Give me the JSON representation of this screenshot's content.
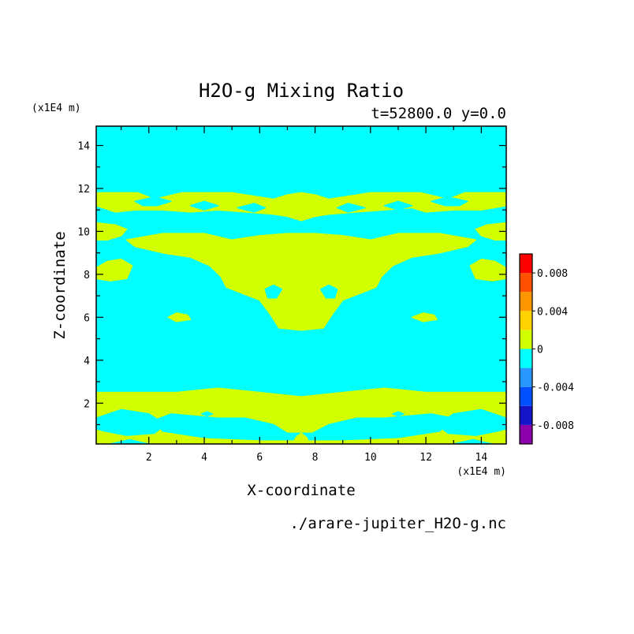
{
  "chart_data": {
    "type": "heatmap",
    "title": "H2O-g Mixing Ratio",
    "subtitle": "t=52800.0 y=0.0",
    "xlabel": "X-coordinate",
    "ylabel": "Z-coordinate",
    "x_unit": "(x1E4 m)",
    "y_unit": "(x1E4 m)",
    "file_label": "./arare-jupiter_H2O-g.nc",
    "xlim": [
      0.1,
      14.9
    ],
    "ylim": [
      0.1,
      14.9
    ],
    "x_ticks": [
      "2",
      "4",
      "6",
      "8",
      "10",
      "12",
      "14"
    ],
    "y_ticks": [
      "2",
      "4",
      "6",
      "8",
      "10",
      "12",
      "14"
    ],
    "x_tick_values": [
      2,
      4,
      6,
      8,
      10,
      12,
      14
    ],
    "y_tick_values": [
      2,
      4,
      6,
      8,
      10,
      12,
      14
    ],
    "colorbar": {
      "levels": [
        -0.01,
        -0.008,
        -0.006,
        -0.004,
        -0.002,
        0,
        0.002,
        0.004,
        0.006,
        0.008,
        0.01
      ],
      "colors": [
        "#8B00A8",
        "#1414C8",
        "#0050FF",
        "#2896FF",
        "#00FFFF",
        "#D2FF00",
        "#FFD200",
        "#FF9600",
        "#FF5000",
        "#FF0000",
        "#FFAAAA"
      ],
      "tick_labels": [
        "0.008",
        "0.004",
        "0",
        "-0.004",
        "-0.008"
      ],
      "tick_values": [
        0.008,
        0.004,
        0,
        -0.004,
        -0.008
      ]
    },
    "background_level": "-0.002 to 0",
    "regions_level": "0 to 0.002",
    "regions": [
      {
        "name": "upper-band",
        "points": [
          [
            0.1,
            11.8
          ],
          [
            1.6,
            11.8
          ],
          [
            2.2,
            11.5
          ],
          [
            3.2,
            11.8
          ],
          [
            5.0,
            11.8
          ],
          [
            6.5,
            11.5
          ],
          [
            7.0,
            11.7
          ],
          [
            7.5,
            11.8
          ],
          [
            8.0,
            11.7
          ],
          [
            8.5,
            11.5
          ],
          [
            10.0,
            11.8
          ],
          [
            11.8,
            11.8
          ],
          [
            12.8,
            11.5
          ],
          [
            13.4,
            11.8
          ],
          [
            14.9,
            11.8
          ],
          [
            14.9,
            11.2
          ],
          [
            14.0,
            11.0
          ],
          [
            13.0,
            11.0
          ],
          [
            12.0,
            10.9
          ],
          [
            11.5,
            11.1
          ],
          [
            10.5,
            11.0
          ],
          [
            9.5,
            10.9
          ],
          [
            8.5,
            10.8
          ],
          [
            8.0,
            10.7
          ],
          [
            7.5,
            10.5
          ],
          [
            7.0,
            10.7
          ],
          [
            6.5,
            10.8
          ],
          [
            5.5,
            10.9
          ],
          [
            4.5,
            11.0
          ],
          [
            3.5,
            10.9
          ],
          [
            2.5,
            11.0
          ],
          [
            1.5,
            11.0
          ],
          [
            0.8,
            10.9
          ],
          [
            0.1,
            11.2
          ]
        ]
      },
      {
        "name": "left-edge-10",
        "points": [
          [
            0.1,
            10.4
          ],
          [
            0.8,
            10.3
          ],
          [
            1.2,
            10.1
          ],
          [
            1.0,
            9.8
          ],
          [
            0.5,
            9.6
          ],
          [
            0.1,
            9.6
          ]
        ]
      },
      {
        "name": "right-edge-10",
        "points": [
          [
            14.9,
            10.4
          ],
          [
            14.2,
            10.3
          ],
          [
            13.8,
            10.1
          ],
          [
            14.0,
            9.8
          ],
          [
            14.5,
            9.6
          ],
          [
            14.9,
            9.6
          ]
        ]
      },
      {
        "name": "central-blob",
        "points": [
          [
            1.2,
            9.6
          ],
          [
            2.5,
            9.9
          ],
          [
            4.0,
            9.9
          ],
          [
            5.0,
            9.6
          ],
          [
            6.0,
            9.8
          ],
          [
            7.0,
            9.9
          ],
          [
            7.5,
            9.9
          ],
          [
            8.0,
            9.9
          ],
          [
            9.0,
            9.8
          ],
          [
            10.0,
            9.6
          ],
          [
            11.0,
            9.9
          ],
          [
            12.5,
            9.9
          ],
          [
            13.8,
            9.6
          ],
          [
            13.5,
            9.3
          ],
          [
            12.5,
            9.0
          ],
          [
            11.5,
            8.8
          ],
          [
            10.8,
            8.4
          ],
          [
            10.4,
            7.9
          ],
          [
            10.2,
            7.4
          ],
          [
            9.6,
            7.1
          ],
          [
            9.0,
            6.8
          ],
          [
            8.6,
            6.1
          ],
          [
            8.3,
            5.5
          ],
          [
            7.5,
            5.4
          ],
          [
            6.7,
            5.5
          ],
          [
            6.4,
            6.1
          ],
          [
            6.0,
            6.8
          ],
          [
            5.4,
            7.1
          ],
          [
            4.8,
            7.4
          ],
          [
            4.6,
            7.9
          ],
          [
            4.2,
            8.4
          ],
          [
            3.5,
            8.8
          ],
          [
            2.5,
            9.0
          ],
          [
            1.5,
            9.3
          ]
        ]
      },
      {
        "name": "left-edge-8",
        "points": [
          [
            0.1,
            8.3
          ],
          [
            0.5,
            8.6
          ],
          [
            1.0,
            8.7
          ],
          [
            1.4,
            8.4
          ],
          [
            1.2,
            7.8
          ],
          [
            0.6,
            7.7
          ],
          [
            0.1,
            7.8
          ]
        ]
      },
      {
        "name": "right-edge-8",
        "points": [
          [
            14.9,
            8.3
          ],
          [
            14.5,
            8.6
          ],
          [
            14.0,
            8.7
          ],
          [
            13.6,
            8.4
          ],
          [
            13.8,
            7.8
          ],
          [
            14.4,
            7.7
          ],
          [
            14.9,
            7.8
          ]
        ]
      },
      {
        "name": "left-small-6",
        "points": [
          [
            2.7,
            6.0
          ],
          [
            3.0,
            6.2
          ],
          [
            3.4,
            6.1
          ],
          [
            3.5,
            5.9
          ],
          [
            3.0,
            5.8
          ]
        ]
      },
      {
        "name": "right-small-6",
        "points": [
          [
            11.5,
            6.0
          ],
          [
            11.9,
            6.2
          ],
          [
            12.3,
            6.1
          ],
          [
            12.4,
            5.9
          ],
          [
            11.9,
            5.8
          ]
        ]
      },
      {
        "name": "lower-band",
        "points": [
          [
            0.1,
            2.5
          ],
          [
            3.0,
            2.5
          ],
          [
            4.5,
            2.7
          ],
          [
            6.0,
            2.5
          ],
          [
            7.5,
            2.3
          ],
          [
            9.0,
            2.5
          ],
          [
            10.5,
            2.7
          ],
          [
            12.0,
            2.5
          ],
          [
            14.9,
            2.5
          ],
          [
            14.9,
            0.1
          ],
          [
            0.1,
            0.1
          ]
        ]
      }
    ],
    "holes": [
      {
        "name": "hole-upper-l1",
        "points": [
          [
            1.5,
            11.4
          ],
          [
            2.2,
            11.6
          ],
          [
            2.8,
            11.4
          ],
          [
            2.3,
            11.2
          ],
          [
            1.8,
            11.2
          ]
        ]
      },
      {
        "name": "hole-upper-l2",
        "points": [
          [
            3.5,
            11.2
          ],
          [
            4.0,
            11.4
          ],
          [
            4.5,
            11.2
          ],
          [
            4.0,
            11.0
          ]
        ]
      },
      {
        "name": "hole-upper-c1",
        "points": [
          [
            5.2,
            11.1
          ],
          [
            5.8,
            11.3
          ],
          [
            6.2,
            11.1
          ],
          [
            5.8,
            10.9
          ]
        ]
      },
      {
        "name": "hole-upper-c2",
        "points": [
          [
            8.8,
            11.1
          ],
          [
            9.2,
            11.3
          ],
          [
            9.8,
            11.1
          ],
          [
            9.2,
            10.9
          ]
        ]
      },
      {
        "name": "hole-upper-r2",
        "points": [
          [
            10.5,
            11.2
          ],
          [
            11.0,
            11.4
          ],
          [
            11.5,
            11.2
          ],
          [
            11.0,
            11.0
          ]
        ]
      },
      {
        "name": "hole-upper-r1",
        "points": [
          [
            12.2,
            11.4
          ],
          [
            12.8,
            11.6
          ],
          [
            13.5,
            11.4
          ],
          [
            13.2,
            11.2
          ],
          [
            12.7,
            11.2
          ]
        ]
      },
      {
        "name": "hole-left-eye",
        "points": [
          [
            6.2,
            7.3
          ],
          [
            6.5,
            7.5
          ],
          [
            6.8,
            7.3
          ],
          [
            6.6,
            6.9
          ],
          [
            6.3,
            6.9
          ]
        ]
      },
      {
        "name": "hole-right-eye",
        "points": [
          [
            8.2,
            7.3
          ],
          [
            8.5,
            7.5
          ],
          [
            8.8,
            7.3
          ],
          [
            8.7,
            6.9
          ],
          [
            8.4,
            6.9
          ]
        ]
      },
      {
        "name": "hole-low-left",
        "points": [
          [
            0.1,
            1.3
          ],
          [
            1.0,
            1.7
          ],
          [
            2.0,
            1.5
          ],
          [
            2.6,
            1.0
          ],
          [
            2.2,
            0.6
          ],
          [
            1.2,
            0.5
          ],
          [
            0.4,
            0.7
          ],
          [
            0.1,
            0.8
          ]
        ]
      },
      {
        "name": "hole-low-mid",
        "points": [
          [
            2.8,
            1.5
          ],
          [
            4.5,
            1.3
          ],
          [
            5.5,
            1.3
          ],
          [
            6.5,
            1.0
          ],
          [
            7.0,
            0.6
          ],
          [
            7.5,
            0.6
          ],
          [
            7.9,
            0.6
          ],
          [
            8.5,
            1.0
          ],
          [
            9.5,
            1.3
          ],
          [
            10.5,
            1.3
          ],
          [
            12.2,
            1.5
          ],
          [
            13.0,
            1.3
          ],
          [
            12.5,
            0.7
          ],
          [
            11.0,
            0.4
          ],
          [
            9.0,
            0.3
          ],
          [
            7.5,
            0.3
          ],
          [
            6.0,
            0.3
          ],
          [
            4.0,
            0.4
          ],
          [
            2.5,
            0.7
          ],
          [
            2.2,
            1.2
          ]
        ]
      },
      {
        "name": "hole-low-right",
        "points": [
          [
            14.9,
            1.3
          ],
          [
            14.0,
            1.7
          ],
          [
            13.0,
            1.5
          ],
          [
            12.4,
            1.0
          ],
          [
            12.8,
            0.6
          ],
          [
            13.8,
            0.5
          ],
          [
            14.6,
            0.7
          ],
          [
            14.9,
            0.8
          ]
        ]
      },
      {
        "name": "hole-low-tiny-l",
        "points": [
          [
            3.9,
            1.5
          ],
          [
            4.1,
            1.6
          ],
          [
            4.3,
            1.5
          ],
          [
            4.1,
            1.4
          ]
        ]
      },
      {
        "name": "hole-low-tiny-r",
        "points": [
          [
            10.8,
            1.5
          ],
          [
            11.0,
            1.6
          ],
          [
            11.2,
            1.5
          ],
          [
            11.0,
            1.4
          ]
        ]
      },
      {
        "name": "hole-low-bottom-l",
        "points": [
          [
            0.6,
            0.1
          ],
          [
            1.3,
            0.3
          ],
          [
            2.0,
            0.1
          ]
        ]
      },
      {
        "name": "hole-low-bottom-r",
        "points": [
          [
            13.0,
            0.1
          ],
          [
            13.7,
            0.3
          ],
          [
            14.4,
            0.1
          ]
        ]
      }
    ],
    "islands": [
      {
        "name": "island-low-center",
        "points": [
          [
            6.2,
            1.7
          ],
          [
            7.5,
            1.9
          ],
          [
            8.8,
            1.7
          ],
          [
            8.2,
            1.4
          ],
          [
            7.5,
            1.3
          ],
          [
            6.8,
            1.4
          ]
        ]
      },
      {
        "name": "island-low-bottom",
        "points": [
          [
            7.2,
            0.1
          ],
          [
            7.3,
            0.4
          ],
          [
            7.5,
            0.6
          ],
          [
            7.7,
            0.4
          ],
          [
            7.8,
            0.1
          ]
        ]
      }
    ]
  }
}
